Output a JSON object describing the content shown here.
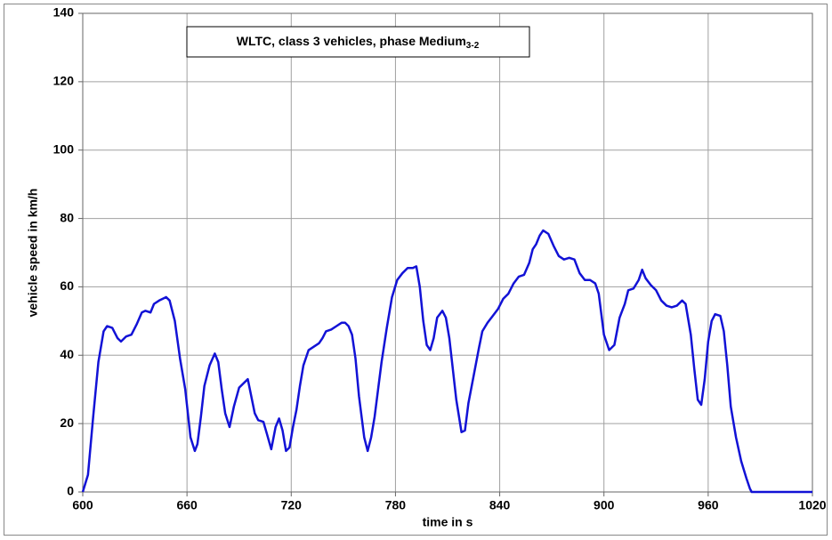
{
  "chart_data": {
    "type": "line",
    "title": "WLTC, class 3 vehicles, phase Medium",
    "title_subscript": "3-2",
    "x_label": "time in s",
    "y_label": "vehicle speed in km/h",
    "xlim": [
      600,
      1020
    ],
    "xticks": [
      600,
      660,
      720,
      780,
      840,
      900,
      960,
      1020
    ],
    "ylim": [
      0,
      140
    ],
    "yticks": [
      0,
      20,
      40,
      60,
      80,
      100,
      120,
      140
    ],
    "grid": true,
    "x": [
      600,
      603,
      606,
      609,
      612,
      614,
      617,
      620,
      622,
      625,
      628,
      631,
      634,
      636,
      639,
      641,
      644,
      648,
      650,
      653,
      656,
      659,
      662,
      664.5,
      666,
      668,
      670,
      673,
      676,
      678,
      680,
      682,
      684.5,
      687,
      690,
      693,
      695,
      697,
      699,
      701,
      704,
      706,
      708.5,
      711,
      713,
      715,
      717,
      719,
      721,
      723,
      725,
      727,
      730,
      733,
      736,
      738,
      740,
      743,
      746,
      749,
      751,
      753,
      755,
      757,
      759,
      762,
      764,
      766,
      768,
      770,
      772,
      775,
      778,
      781,
      784,
      787,
      790,
      792,
      794,
      796,
      798,
      800,
      802,
      804,
      807,
      809,
      811,
      813,
      815,
      818,
      820,
      822,
      825,
      828,
      830,
      833,
      836,
      839,
      842,
      845,
      848,
      851,
      854,
      857,
      859,
      861,
      863,
      865,
      868,
      871,
      874,
      877,
      880,
      883,
      886,
      889,
      892,
      895,
      897,
      900,
      903,
      906,
      909,
      912,
      914,
      917,
      920,
      922,
      924,
      927,
      930,
      933,
      936,
      939,
      942,
      945,
      947,
      950,
      952,
      954,
      956,
      958,
      960,
      962,
      964,
      967,
      969,
      971,
      973,
      976,
      979,
      982,
      984,
      985,
      1020
    ],
    "series": [
      {
        "name": "vehicle speed",
        "color": "#1212d6",
        "values": [
          0,
          5,
          22,
          38,
          47,
          48.5,
          48,
          45,
          44,
          45.5,
          46,
          49,
          52.5,
          53,
          52.5,
          55,
          56,
          57,
          56,
          50,
          39,
          30,
          16,
          12,
          14,
          22,
          31,
          37,
          40.5,
          38,
          30,
          23,
          19,
          25,
          30.5,
          32,
          33,
          28,
          23,
          21,
          20.5,
          17,
          12.5,
          19,
          21.5,
          18,
          12,
          13,
          19,
          24,
          31,
          37,
          41.5,
          42.5,
          43.5,
          45,
          47,
          47.5,
          48.5,
          49.5,
          49.5,
          48.5,
          46,
          39,
          28,
          16,
          12,
          16,
          22,
          30,
          38,
          48,
          57,
          62,
          64,
          65.5,
          65.5,
          66,
          60,
          50,
          43,
          41.5,
          45,
          51,
          53,
          51,
          45,
          36,
          27,
          17.5,
          18,
          26,
          34,
          42,
          47,
          49.5,
          51.5,
          53.5,
          56.5,
          58,
          61,
          63,
          63.5,
          67,
          71,
          72.5,
          75,
          76.5,
          75.5,
          72,
          69,
          68,
          68.5,
          68,
          64,
          62,
          62,
          61,
          58,
          46,
          41.5,
          43,
          51,
          55,
          59,
          59.5,
          62,
          65,
          62.5,
          60.5,
          59,
          56,
          54.5,
          54,
          54.5,
          56,
          55,
          46,
          36,
          27,
          25.5,
          33,
          44,
          50,
          52,
          51.5,
          47,
          37,
          25,
          16,
          9,
          4,
          1,
          0,
          0
        ]
      }
    ]
  }
}
